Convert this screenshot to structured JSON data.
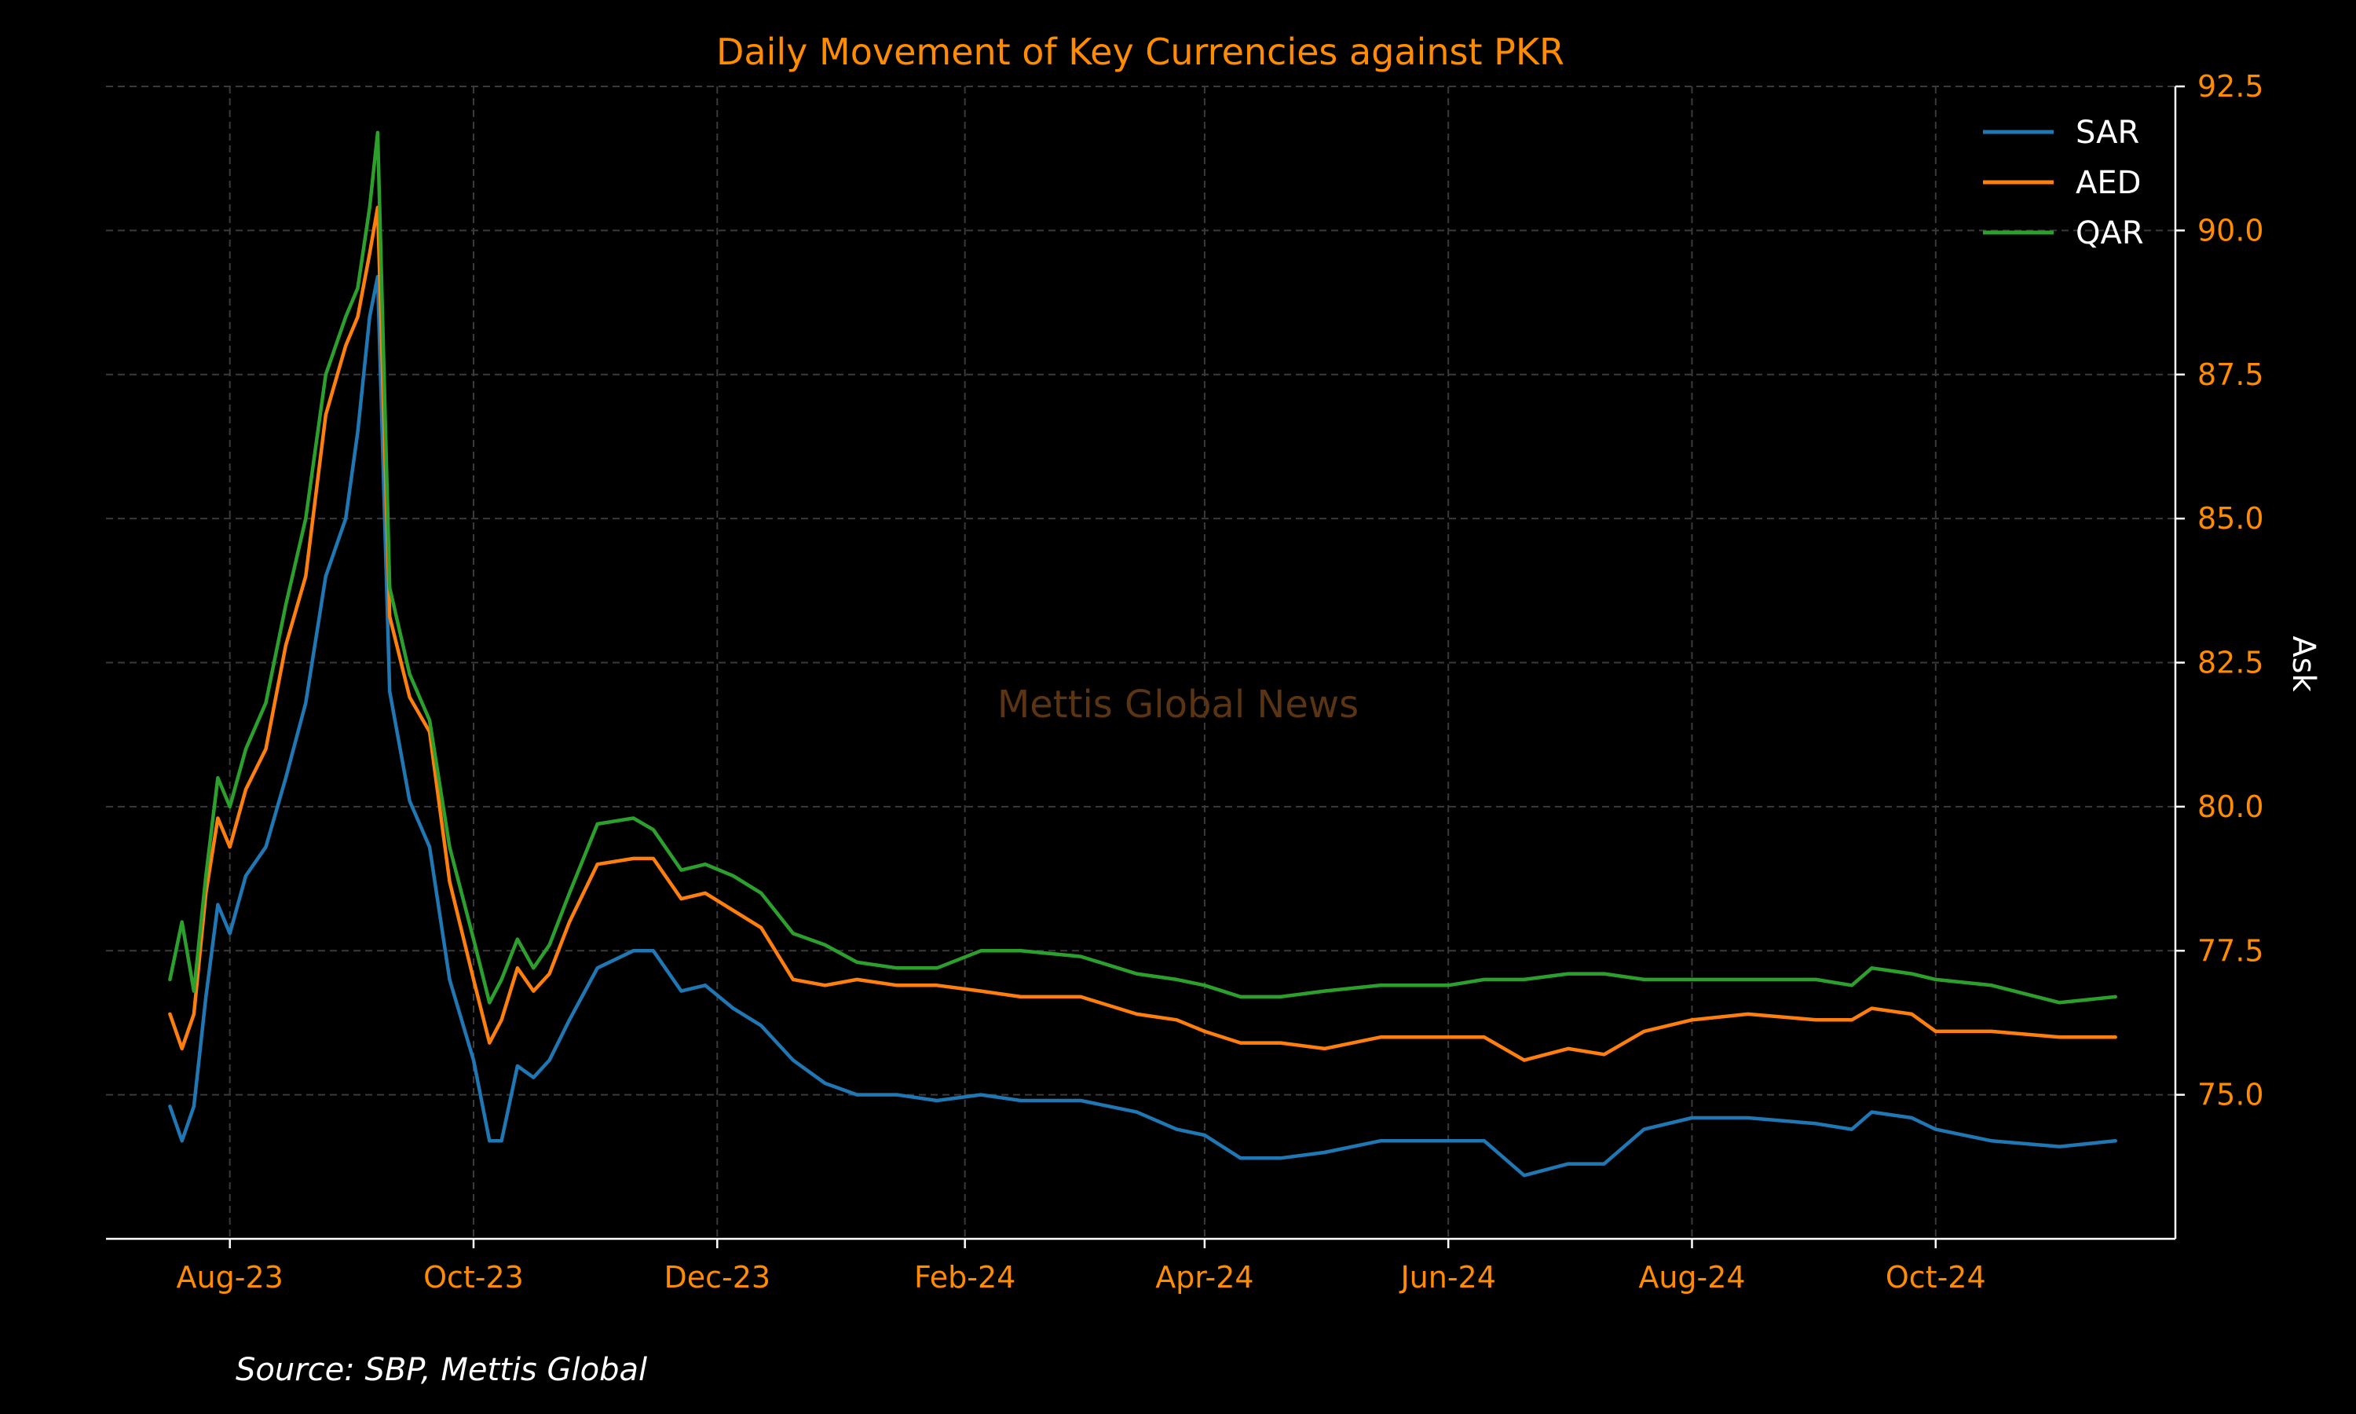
{
  "chart_data": {
    "type": "line",
    "title": "Daily Movement of Key Currencies against PKR",
    "ylabel": "Ask",
    "xlabel": "",
    "source": "Source: SBP, Mettis Global",
    "watermark": "Mettis Global News",
    "y_axis_side": "right",
    "ylim": [
      72.5,
      92.5
    ],
    "yticks": [
      75.0,
      77.5,
      80.0,
      82.5,
      85.0,
      87.5,
      90.0,
      92.5
    ],
    "ytick_labels": [
      "75.0",
      "77.5",
      "80.0",
      "82.5",
      "85.0",
      "87.5",
      "90.0",
      "92.5"
    ],
    "xlim": [
      "2023-07-01",
      "2024-11-30"
    ],
    "xticks": [
      "2023-08-01",
      "2023-10-01",
      "2023-12-01",
      "2024-02-01",
      "2024-04-01",
      "2024-06-01",
      "2024-08-01",
      "2024-10-01"
    ],
    "xtick_labels": [
      "Aug-23",
      "Oct-23",
      "Dec-23",
      "Feb-24",
      "Apr-24",
      "Jun-24",
      "Aug-24",
      "Oct-24"
    ],
    "grid": true,
    "legend_position": "top-right",
    "x": [
      "2023-07-17",
      "2023-07-20",
      "2023-07-23",
      "2023-07-26",
      "2023-07-29",
      "2023-08-01",
      "2023-08-05",
      "2023-08-10",
      "2023-08-15",
      "2023-08-20",
      "2023-08-25",
      "2023-08-30",
      "2023-09-02",
      "2023-09-05",
      "2023-09-07",
      "2023-09-10",
      "2023-09-15",
      "2023-09-20",
      "2023-09-25",
      "2023-10-01",
      "2023-10-05",
      "2023-10-08",
      "2023-10-12",
      "2023-10-16",
      "2023-10-20",
      "2023-10-25",
      "2023-11-01",
      "2023-11-10",
      "2023-11-15",
      "2023-11-22",
      "2023-11-28",
      "2023-12-05",
      "2023-12-12",
      "2023-12-20",
      "2023-12-28",
      "2024-01-05",
      "2024-01-15",
      "2024-01-25",
      "2024-02-05",
      "2024-02-15",
      "2024-03-01",
      "2024-03-15",
      "2024-03-25",
      "2024-04-01",
      "2024-04-10",
      "2024-04-20",
      "2024-05-01",
      "2024-05-15",
      "2024-05-25",
      "2024-06-01",
      "2024-06-10",
      "2024-06-20",
      "2024-07-01",
      "2024-07-10",
      "2024-07-20",
      "2024-08-01",
      "2024-08-15",
      "2024-09-01",
      "2024-09-10",
      "2024-09-15",
      "2024-09-25",
      "2024-10-01",
      "2024-10-15",
      "2024-11-01",
      "2024-11-15"
    ],
    "series": [
      {
        "name": "SAR",
        "color": "#1f77b4",
        "values": [
          74.8,
          74.2,
          74.8,
          76.7,
          78.3,
          77.8,
          78.8,
          79.3,
          80.5,
          81.8,
          84.0,
          85.0,
          86.5,
          88.5,
          89.2,
          82.0,
          80.1,
          79.3,
          77.0,
          75.6,
          74.2,
          74.2,
          75.5,
          75.3,
          75.6,
          76.3,
          77.2,
          77.5,
          77.5,
          76.8,
          76.9,
          76.5,
          76.2,
          75.6,
          75.2,
          75.0,
          75.0,
          74.9,
          75.0,
          74.9,
          74.9,
          74.7,
          74.4,
          74.3,
          73.9,
          73.9,
          74.0,
          74.2,
          74.2,
          74.2,
          74.2,
          73.6,
          73.8,
          73.8,
          74.4,
          74.6,
          74.6,
          74.5,
          74.4,
          74.7,
          74.6,
          74.4,
          74.2,
          74.1,
          74.2
        ]
      },
      {
        "name": "AED",
        "color": "#ff7f0e",
        "values": [
          76.4,
          75.8,
          76.4,
          78.5,
          79.8,
          79.3,
          80.3,
          81.0,
          82.8,
          84.0,
          86.8,
          88.0,
          88.5,
          89.6,
          90.4,
          83.3,
          81.9,
          81.3,
          78.7,
          77.0,
          75.9,
          76.3,
          77.2,
          76.8,
          77.1,
          78.0,
          79.0,
          79.1,
          79.1,
          78.4,
          78.5,
          78.2,
          77.9,
          77.0,
          76.9,
          77.0,
          76.9,
          76.9,
          76.8,
          76.7,
          76.7,
          76.4,
          76.3,
          76.1,
          75.9,
          75.9,
          75.8,
          76.0,
          76.0,
          76.0,
          76.0,
          75.6,
          75.8,
          75.7,
          76.1,
          76.3,
          76.4,
          76.3,
          76.3,
          76.5,
          76.4,
          76.1,
          76.1,
          76.0,
          76.0
        ]
      },
      {
        "name": "QAR",
        "color": "#2ca02c",
        "values": [
          77.0,
          78.0,
          76.8,
          78.8,
          80.5,
          80.0,
          81.0,
          81.8,
          83.5,
          85.0,
          87.5,
          88.5,
          89.0,
          90.4,
          91.7,
          83.8,
          82.3,
          81.5,
          79.3,
          77.7,
          76.6,
          77.0,
          77.7,
          77.2,
          77.6,
          78.5,
          79.7,
          79.8,
          79.6,
          78.9,
          79.0,
          78.8,
          78.5,
          77.8,
          77.6,
          77.3,
          77.2,
          77.2,
          77.5,
          77.5,
          77.4,
          77.1,
          77.0,
          76.9,
          76.7,
          76.7,
          76.8,
          76.9,
          76.9,
          76.9,
          77.0,
          77.0,
          77.1,
          77.1,
          77.0,
          77.0,
          77.0,
          77.0,
          76.9,
          77.2,
          77.1,
          77.0,
          76.9,
          76.6,
          76.7
        ]
      }
    ]
  }
}
